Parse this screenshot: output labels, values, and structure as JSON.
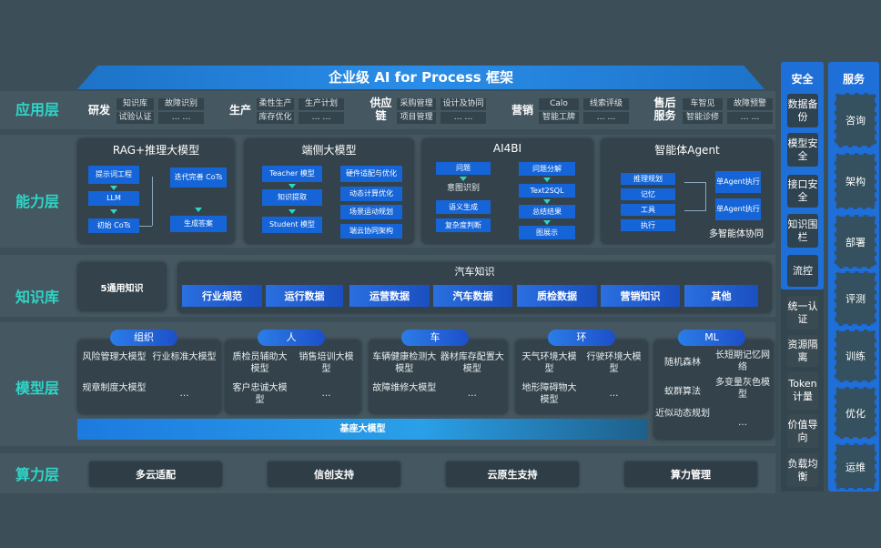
{
  "title": "企业级 AI for Process 框架",
  "layers": [
    "应用层",
    "能力层",
    "知识库",
    "模型层",
    "算力层"
  ],
  "app": {
    "groups": [
      {
        "name": "研发",
        "c1": [
          "知识库",
          "试验认证"
        ],
        "c2": [
          "故障识别",
          "… …"
        ]
      },
      {
        "name": "生产",
        "c1": [
          "柔性生产",
          "库存优化"
        ],
        "c2": [
          "生产计划",
          "… …"
        ]
      },
      {
        "name": "供应链",
        "c1": [
          "采购管理",
          "项目管理"
        ],
        "c2": [
          "设计及协同",
          "… …"
        ]
      },
      {
        "name": "营销",
        "c1": [
          "Calo",
          "智能工牌"
        ],
        "c2": [
          "线索评级",
          "… …"
        ]
      },
      {
        "name": "售后服务",
        "c1": [
          "车智见",
          "智能诊修"
        ],
        "c2": [
          "故障预警",
          "… …"
        ]
      }
    ]
  },
  "capability": {
    "rag": {
      "title": "RAG+推理大模型",
      "items": [
        "提示词工程",
        "LLM",
        "初始 CoTs",
        "迭代完善 CoTs",
        "生成答案"
      ]
    },
    "edge": {
      "title": "端侧大模型",
      "left": [
        "Teacher 模型",
        "知识提取",
        "Student 模型"
      ],
      "right": [
        "硬件适配与优化",
        "动态计算优化",
        "场景运动规划",
        "端云协同架构"
      ]
    },
    "ai4bi": {
      "title": "AI4BI",
      "left": [
        "问题",
        "意图识别",
        "语义生成",
        "复杂度判断"
      ],
      "right": [
        "问题分解",
        "Text2SQL",
        "总结结果",
        "图展示"
      ]
    },
    "agent": {
      "title": "智能体Agent",
      "left": [
        "推理规划",
        "记忆",
        "工具",
        "执行"
      ],
      "right": [
        "单Agent执行",
        "单Agent执行"
      ],
      "footer": "多智能体协同"
    }
  },
  "knowledge": {
    "general": "5通用知识",
    "auto_title": "汽车知识",
    "items": [
      "行业规范",
      "运行数据",
      "运营数据",
      "汽车数据",
      "质检数据",
      "营销知识",
      "其他"
    ]
  },
  "model": {
    "cats": [
      {
        "name": "组织",
        "items": [
          "风险管理大模型",
          "行业标准大模型",
          "规章制度大模型",
          "…"
        ]
      },
      {
        "name": "人",
        "items": [
          "质检员辅助大模型",
          "销售培训大模型",
          "客户忠诚大模型",
          "…"
        ]
      },
      {
        "name": "车",
        "items": [
          "车辆健康检测大模型",
          "器材库存配置大模型",
          "故障维修大模型",
          "…"
        ]
      },
      {
        "name": "环",
        "items": [
          "天气环境大模型",
          "行驶环境大模型",
          "地形障碍物大模型",
          "…"
        ]
      }
    ],
    "ml": {
      "name": "ML",
      "items": [
        "随机森林",
        "长短期记忆网络",
        "蚁群算法",
        "多变量灰色模型",
        "近似动态规划",
        "…"
      ]
    },
    "base": "基座大模型"
  },
  "compute": [
    "多云适配",
    "信创支持",
    "云原生支持",
    "算力管理"
  ],
  "security": {
    "title": "安全",
    "items": [
      "数据备份",
      "模型安全",
      "接口安全",
      "知识围栏",
      "流控",
      "统一认证",
      "资源隔离",
      "Token计量",
      "价值导向",
      "负载均衡"
    ]
  },
  "service": {
    "title": "服务",
    "items": [
      "咨询",
      "架构",
      "部署",
      "评测",
      "训练",
      "优化",
      "运维"
    ]
  },
  "colors": {
    "accent": "#2fd6c8",
    "blue": "#1565d8",
    "bg": "#3c4f58"
  }
}
